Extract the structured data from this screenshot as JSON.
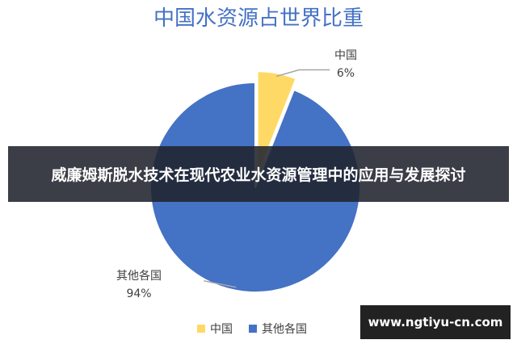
{
  "overlay_title": "威廉姆斯脱水技术在现代农业水资源管理中的应用与发展探讨",
  "watermark": "www.ngtiyu-cn.com",
  "chart_data": {
    "type": "pie",
    "title": "中国水资源占世界比重",
    "slices": [
      {
        "label": "中国",
        "value": 6,
        "value_label": "6%",
        "color": "#FFD966",
        "exploded": true
      },
      {
        "label": "其他各国",
        "value": 94,
        "value_label": "94%",
        "color": "#4472C4",
        "exploded": false
      }
    ],
    "legend": {
      "position": "bottom",
      "items": [
        "中国",
        "其他各国"
      ]
    },
    "title_color": "#4472C4",
    "label_color": "#404040"
  }
}
